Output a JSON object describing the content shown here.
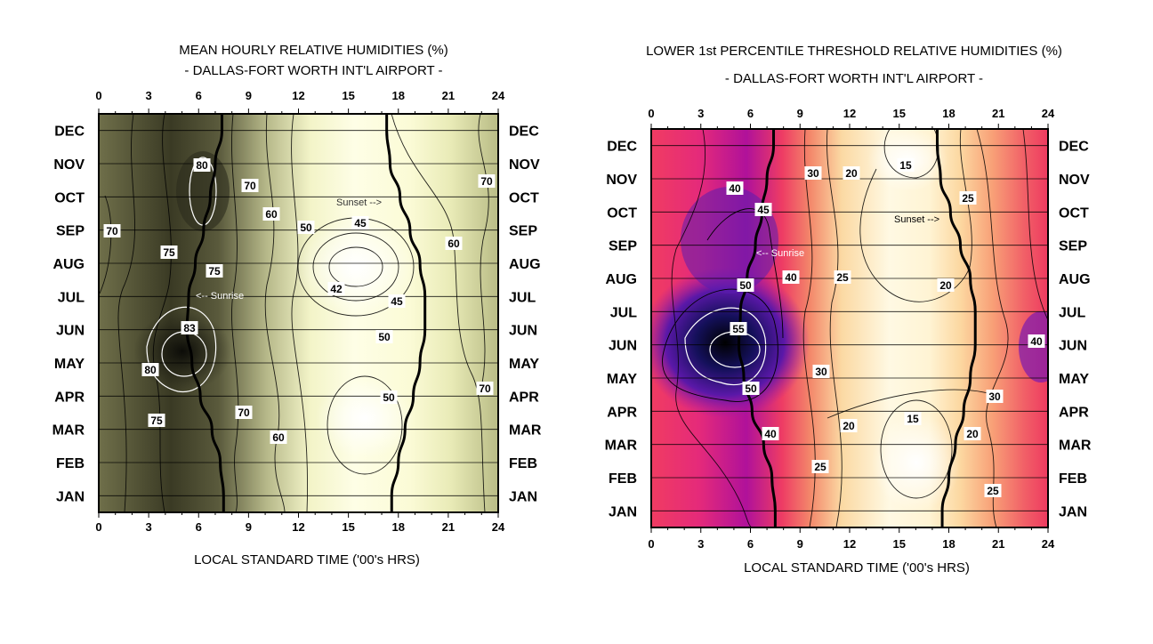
{
  "chart_data": [
    {
      "type": "heatmap",
      "title": "MEAN HOURLY RELATIVE HUMIDITIES (%)",
      "subtitle": "- DALLAS-FORT WORTH INT'L AIRPORT -",
      "xlabel": "LOCAL STANDARD TIME ('00's HRS)",
      "x_ticks": [
        "0",
        "3",
        "6",
        "9",
        "12",
        "15",
        "18",
        "21",
        "24"
      ],
      "y_months": [
        "JAN",
        "FEB",
        "MAR",
        "APR",
        "MAY",
        "JUN",
        "JUL",
        "AUG",
        "SEP",
        "OCT",
        "NOV",
        "DEC"
      ],
      "xlim": [
        0,
        24
      ],
      "color_scale": "dark olive (high RH) to light yellow/white (low RH)",
      "contour_labels": [
        "80",
        "70",
        "70",
        "60",
        "70",
        "75",
        "75",
        "50",
        "45",
        "60",
        "42",
        "45",
        "83",
        "50",
        "80",
        "70",
        "50",
        "75",
        "70",
        "60"
      ],
      "annotations": [
        "<-- Sunrise",
        "Sunset -->"
      ],
      "sunrise_hours": [
        7.5,
        7.3,
        6.8,
        6.1,
        5.6,
        5.3,
        5.4,
        5.8,
        6.3,
        6.7,
        7.0,
        7.4
      ],
      "sunset_hours": [
        17.6,
        18.0,
        18.4,
        18.9,
        19.3,
        19.6,
        19.6,
        19.3,
        18.7,
        18.1,
        17.5,
        17.3
      ]
    },
    {
      "type": "heatmap",
      "title": "LOWER 1st PERCENTILE THRESHOLD RELATIVE HUMIDITIES (%)",
      "subtitle": "- DALLAS-FORT WORTH INT'L AIRPORT -",
      "xlabel": "LOCAL STANDARD TIME ('00's HRS)",
      "x_ticks": [
        "0",
        "3",
        "6",
        "9",
        "12",
        "15",
        "18",
        "21",
        "24"
      ],
      "y_months": [
        "JAN",
        "FEB",
        "MAR",
        "APR",
        "MAY",
        "JUN",
        "JUL",
        "AUG",
        "SEP",
        "OCT",
        "NOV",
        "DEC"
      ],
      "xlim": [
        0,
        24
      ],
      "color_scale": "dark navy/purple (high RH) through magenta/red to light yellow/white (low RH)",
      "contour_labels": [
        "15",
        "30",
        "20",
        "40",
        "25",
        "45",
        "40",
        "25",
        "50",
        "20",
        "55",
        "40",
        "30",
        "50",
        "30",
        "15",
        "40",
        "20",
        "20",
        "25",
        "25"
      ],
      "annotations": [
        "<-- Sunrise",
        "Sunset -->"
      ],
      "sunrise_hours": [
        7.5,
        7.3,
        6.8,
        6.1,
        5.6,
        5.3,
        5.4,
        5.8,
        6.3,
        6.7,
        7.0,
        7.4
      ],
      "sunset_hours": [
        17.6,
        18.0,
        18.4,
        18.9,
        19.3,
        19.6,
        19.6,
        19.3,
        18.7,
        18.1,
        17.5,
        17.3
      ]
    }
  ]
}
